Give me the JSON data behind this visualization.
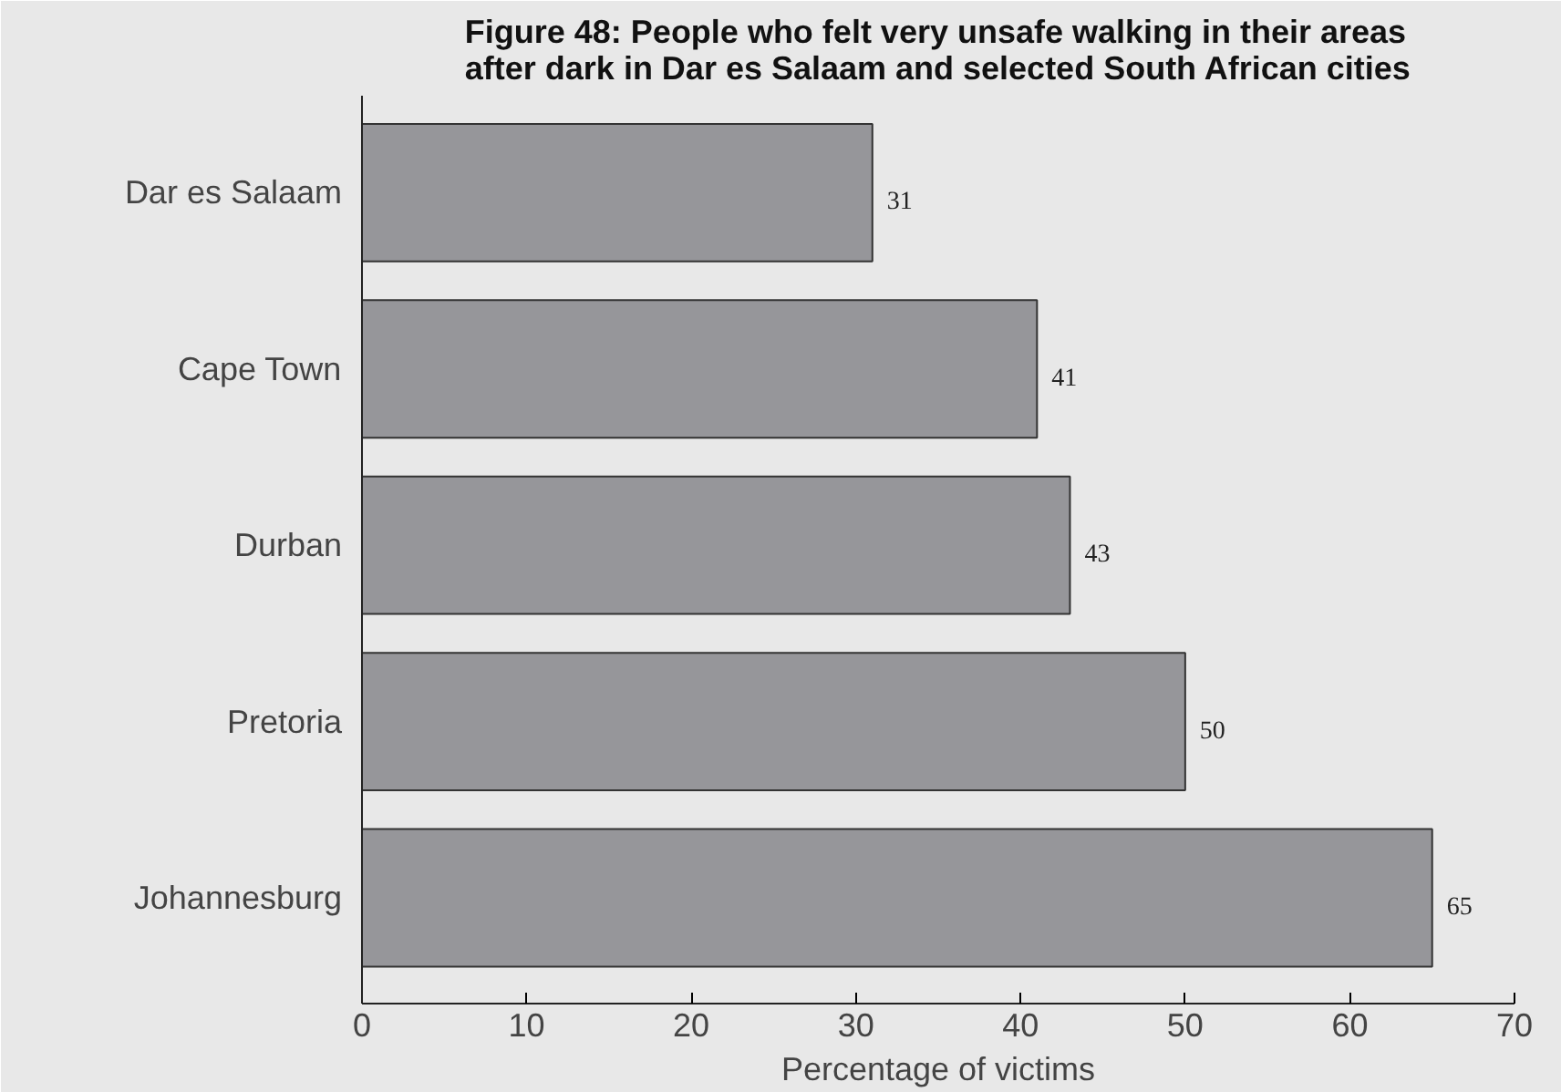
{
  "chart_data": {
    "type": "bar",
    "orientation": "horizontal",
    "title": "Figure 48: People who felt very unsafe walking in their areas after dark in Dar es Salaam and selected South African cities",
    "categories": [
      "Dar es Salaam",
      "Cape Town",
      "Durban",
      "Pretoria",
      "Johannesburg"
    ],
    "values": [
      31,
      41,
      43,
      50,
      65
    ],
    "color": "#96969a",
    "xlabel": "Percentage of victims",
    "xlim": [
      0,
      70
    ],
    "xticks": [
      0,
      10,
      20,
      30,
      40,
      50,
      60,
      70
    ],
    "data_labels": true
  }
}
